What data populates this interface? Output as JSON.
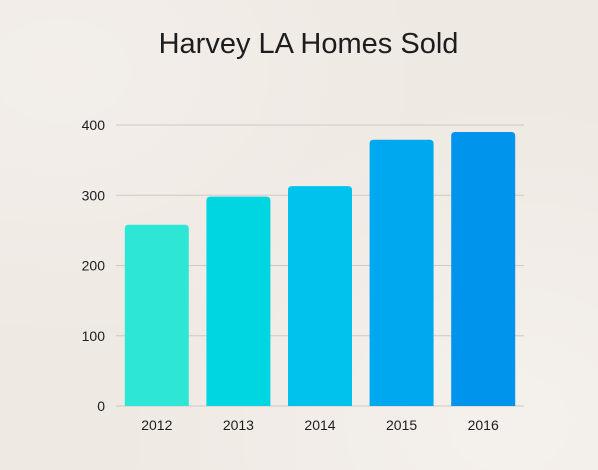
{
  "chart_data": {
    "type": "bar",
    "title": "Harvey LA Homes Sold",
    "xlabel": "",
    "ylabel": "",
    "categories": [
      "2012",
      "2013",
      "2014",
      "2015",
      "2016"
    ],
    "values": [
      258,
      298,
      313,
      379,
      390
    ],
    "ylim": [
      0,
      400
    ],
    "yticks": [
      0,
      100,
      200,
      300,
      400
    ],
    "grid": true,
    "bar_colors": [
      "#2ee6d6",
      "#00d5e2",
      "#00c2ec",
      "#00a8f0",
      "#0094ec"
    ],
    "gridline_color": "#cfc9c3"
  }
}
